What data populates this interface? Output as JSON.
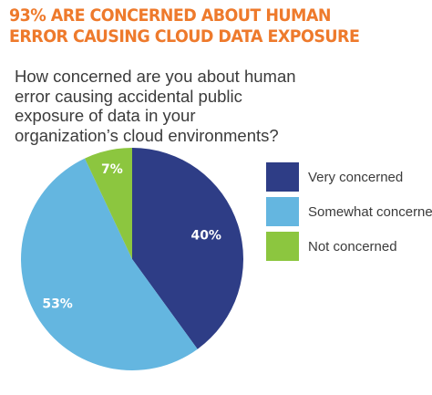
{
  "chart_data": {
    "type": "pie",
    "title": "93% ARE CONCERNED ABOUT HUMAN ERROR CAUSING CLOUD DATA EXPOSURE",
    "title_lines": [
      "93% ARE CONCERNED ABOUT HUMAN",
      "ERROR CAUSING CLOUD DATA EXPOSURE"
    ],
    "subtitle_lines": [
      "How concerned are you about human",
      "error causing accidental public",
      "exposure of data in your",
      "organization’s cloud environments?"
    ],
    "slices": [
      {
        "label": "Very concerned",
        "value": 40,
        "display": "40%",
        "color": "#2e3d86"
      },
      {
        "label": "Somewhat concerned",
        "value": 53,
        "display": "53%",
        "color": "#64b6e0"
      },
      {
        "label": "Not concerned",
        "value": 7,
        "display": "7%",
        "color": "#8cc63f"
      }
    ],
    "legend_position": "right",
    "start_angle": "top",
    "direction": "clockwise"
  },
  "colors": {
    "headline": "#ee7a2c",
    "text": "#3b3b3b",
    "slice_text": "#ffffff"
  }
}
